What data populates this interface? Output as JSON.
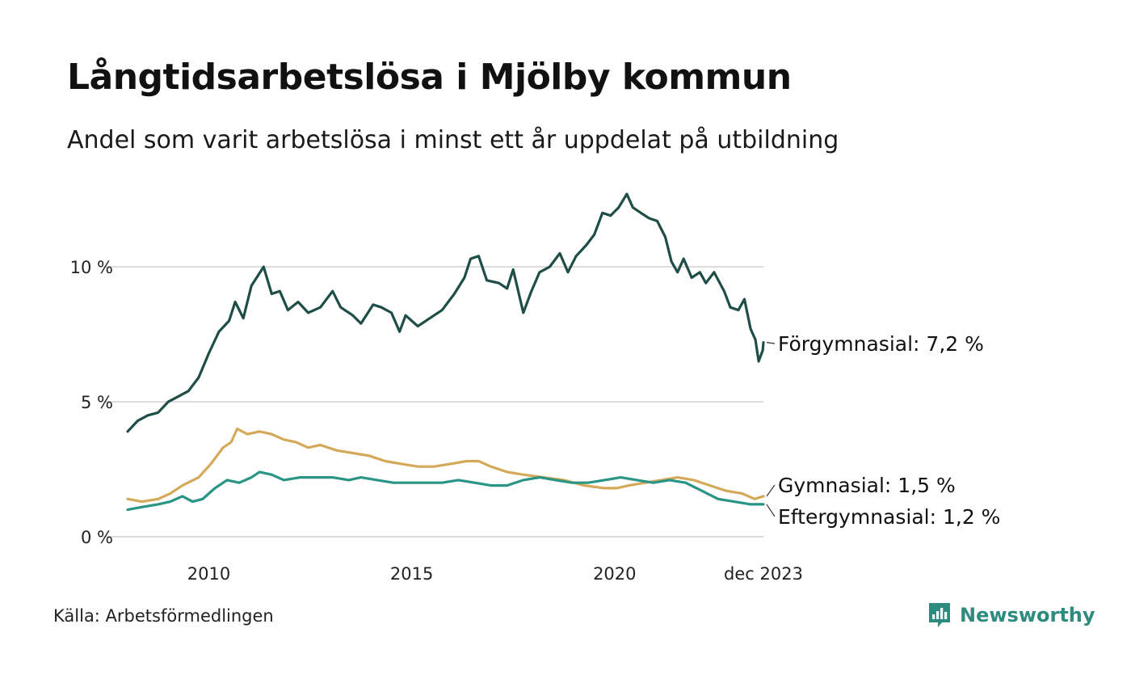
{
  "title": "Långtidsarbetslösa i Mjölby kommun",
  "subtitle": "Andel som varit arbetslösa i minst ett år uppdelat på utbildning",
  "source": "Källa: Arbetsförmedlingen",
  "brand": {
    "name": "Newsworthy",
    "icon": "newsworthy-logo-icon",
    "color": "#2e8b7f"
  },
  "chart_data": {
    "type": "line",
    "title": "Långtidsarbetslösa i Mjölby kommun",
    "xlabel": "",
    "ylabel": "",
    "x_range": [
      2008.25,
      2023.917
    ],
    "ylim": [
      0,
      12.7
    ],
    "y_ticks": [
      {
        "value": 0,
        "label": "0 %"
      },
      {
        "value": 5,
        "label": "5 %"
      },
      {
        "value": 10,
        "label": "10 %"
      }
    ],
    "x_ticks": [
      {
        "value": 2010.25,
        "label": "2010"
      },
      {
        "value": 2015.25,
        "label": "2015"
      },
      {
        "value": 2020.25,
        "label": "2020"
      },
      {
        "value": 2023.917,
        "label": "dec 2023"
      }
    ],
    "grid": true,
    "series": [
      {
        "name": "Förgymnasial",
        "color": "#1f4e48",
        "end_label": "Förgymnasial: 7,2 %",
        "points": [
          [
            2008.25,
            3.9
          ],
          [
            2008.5,
            4.3
          ],
          [
            2008.75,
            4.5
          ],
          [
            2009.0,
            4.6
          ],
          [
            2009.25,
            5.0
          ],
          [
            2009.5,
            5.2
          ],
          [
            2009.75,
            5.4
          ],
          [
            2010.0,
            5.9
          ],
          [
            2010.25,
            6.8
          ],
          [
            2010.5,
            7.6
          ],
          [
            2010.75,
            8.0
          ],
          [
            2010.9,
            8.7
          ],
          [
            2011.1,
            8.1
          ],
          [
            2011.3,
            9.3
          ],
          [
            2011.6,
            10.0
          ],
          [
            2011.8,
            9.0
          ],
          [
            2012.0,
            9.1
          ],
          [
            2012.2,
            8.4
          ],
          [
            2012.45,
            8.7
          ],
          [
            2012.7,
            8.3
          ],
          [
            2013.0,
            8.5
          ],
          [
            2013.3,
            9.1
          ],
          [
            2013.5,
            8.5
          ],
          [
            2013.8,
            8.2
          ],
          [
            2014.0,
            7.9
          ],
          [
            2014.3,
            8.6
          ],
          [
            2014.5,
            8.5
          ],
          [
            2014.75,
            8.3
          ],
          [
            2014.95,
            7.6
          ],
          [
            2015.1,
            8.2
          ],
          [
            2015.4,
            7.8
          ],
          [
            2015.7,
            8.1
          ],
          [
            2016.0,
            8.4
          ],
          [
            2016.3,
            9.0
          ],
          [
            2016.55,
            9.6
          ],
          [
            2016.7,
            10.3
          ],
          [
            2016.9,
            10.4
          ],
          [
            2017.1,
            9.5
          ],
          [
            2017.4,
            9.4
          ],
          [
            2017.6,
            9.2
          ],
          [
            2017.75,
            9.9
          ],
          [
            2018.0,
            8.3
          ],
          [
            2018.2,
            9.1
          ],
          [
            2018.4,
            9.8
          ],
          [
            2018.65,
            10.0
          ],
          [
            2018.9,
            10.5
          ],
          [
            2019.1,
            9.8
          ],
          [
            2019.3,
            10.4
          ],
          [
            2019.55,
            10.8
          ],
          [
            2019.75,
            11.2
          ],
          [
            2019.95,
            12.0
          ],
          [
            2020.15,
            11.9
          ],
          [
            2020.35,
            12.2
          ],
          [
            2020.55,
            12.7
          ],
          [
            2020.7,
            12.2
          ],
          [
            2020.9,
            12.0
          ],
          [
            2021.1,
            11.8
          ],
          [
            2021.3,
            11.7
          ],
          [
            2021.5,
            11.1
          ],
          [
            2021.65,
            10.2
          ],
          [
            2021.8,
            9.8
          ],
          [
            2021.95,
            10.3
          ],
          [
            2022.15,
            9.6
          ],
          [
            2022.35,
            9.8
          ],
          [
            2022.5,
            9.4
          ],
          [
            2022.7,
            9.8
          ],
          [
            2022.95,
            9.1
          ],
          [
            2023.1,
            8.5
          ],
          [
            2023.3,
            8.4
          ],
          [
            2023.45,
            8.8
          ],
          [
            2023.6,
            7.7
          ],
          [
            2023.72,
            7.3
          ],
          [
            2023.8,
            6.5
          ],
          [
            2023.9,
            6.9
          ],
          [
            2023.917,
            7.2
          ]
        ]
      },
      {
        "name": "Gymnasial",
        "color": "#d4a95a",
        "end_label": "Gymnasial: 1,5 %",
        "points": [
          [
            2008.25,
            1.4
          ],
          [
            2008.6,
            1.3
          ],
          [
            2009.0,
            1.4
          ],
          [
            2009.3,
            1.6
          ],
          [
            2009.6,
            1.9
          ],
          [
            2010.0,
            2.2
          ],
          [
            2010.3,
            2.7
          ],
          [
            2010.6,
            3.3
          ],
          [
            2010.8,
            3.5
          ],
          [
            2010.95,
            4.0
          ],
          [
            2011.2,
            3.8
          ],
          [
            2011.5,
            3.9
          ],
          [
            2011.8,
            3.8
          ],
          [
            2012.1,
            3.6
          ],
          [
            2012.4,
            3.5
          ],
          [
            2012.7,
            3.3
          ],
          [
            2013.0,
            3.4
          ],
          [
            2013.4,
            3.2
          ],
          [
            2013.8,
            3.1
          ],
          [
            2014.2,
            3.0
          ],
          [
            2014.6,
            2.8
          ],
          [
            2015.0,
            2.7
          ],
          [
            2015.4,
            2.6
          ],
          [
            2015.8,
            2.6
          ],
          [
            2016.2,
            2.7
          ],
          [
            2016.6,
            2.8
          ],
          [
            2016.9,
            2.8
          ],
          [
            2017.2,
            2.6
          ],
          [
            2017.6,
            2.4
          ],
          [
            2018.0,
            2.3
          ],
          [
            2018.5,
            2.2
          ],
          [
            2019.0,
            2.1
          ],
          [
            2019.5,
            1.9
          ],
          [
            2020.0,
            1.8
          ],
          [
            2020.3,
            1.8
          ],
          [
            2020.6,
            1.9
          ],
          [
            2021.0,
            2.0
          ],
          [
            2021.4,
            2.1
          ],
          [
            2021.8,
            2.2
          ],
          [
            2022.2,
            2.1
          ],
          [
            2022.6,
            1.9
          ],
          [
            2023.0,
            1.7
          ],
          [
            2023.4,
            1.6
          ],
          [
            2023.7,
            1.4
          ],
          [
            2023.917,
            1.5
          ]
        ]
      },
      {
        "name": "Eftergymnasial",
        "color": "#2a9485",
        "end_label": "Eftergymnasial: 1,2 %",
        "points": [
          [
            2008.25,
            1.0
          ],
          [
            2008.6,
            1.1
          ],
          [
            2009.0,
            1.2
          ],
          [
            2009.3,
            1.3
          ],
          [
            2009.6,
            1.5
          ],
          [
            2009.85,
            1.3
          ],
          [
            2010.1,
            1.4
          ],
          [
            2010.4,
            1.8
          ],
          [
            2010.7,
            2.1
          ],
          [
            2011.0,
            2.0
          ],
          [
            2011.3,
            2.2
          ],
          [
            2011.5,
            2.4
          ],
          [
            2011.8,
            2.3
          ],
          [
            2012.1,
            2.1
          ],
          [
            2012.5,
            2.2
          ],
          [
            2012.9,
            2.2
          ],
          [
            2013.3,
            2.2
          ],
          [
            2013.7,
            2.1
          ],
          [
            2014.0,
            2.2
          ],
          [
            2014.4,
            2.1
          ],
          [
            2014.8,
            2.0
          ],
          [
            2015.2,
            2.0
          ],
          [
            2015.6,
            2.0
          ],
          [
            2016.0,
            2.0
          ],
          [
            2016.4,
            2.1
          ],
          [
            2016.8,
            2.0
          ],
          [
            2017.2,
            1.9
          ],
          [
            2017.6,
            1.9
          ],
          [
            2018.0,
            2.1
          ],
          [
            2018.4,
            2.2
          ],
          [
            2018.8,
            2.1
          ],
          [
            2019.2,
            2.0
          ],
          [
            2019.6,
            2.0
          ],
          [
            2020.0,
            2.1
          ],
          [
            2020.4,
            2.2
          ],
          [
            2020.8,
            2.1
          ],
          [
            2021.2,
            2.0
          ],
          [
            2021.6,
            2.1
          ],
          [
            2022.0,
            2.0
          ],
          [
            2022.4,
            1.7
          ],
          [
            2022.8,
            1.4
          ],
          [
            2023.2,
            1.3
          ],
          [
            2023.6,
            1.2
          ],
          [
            2023.917,
            1.2
          ]
        ]
      }
    ]
  }
}
